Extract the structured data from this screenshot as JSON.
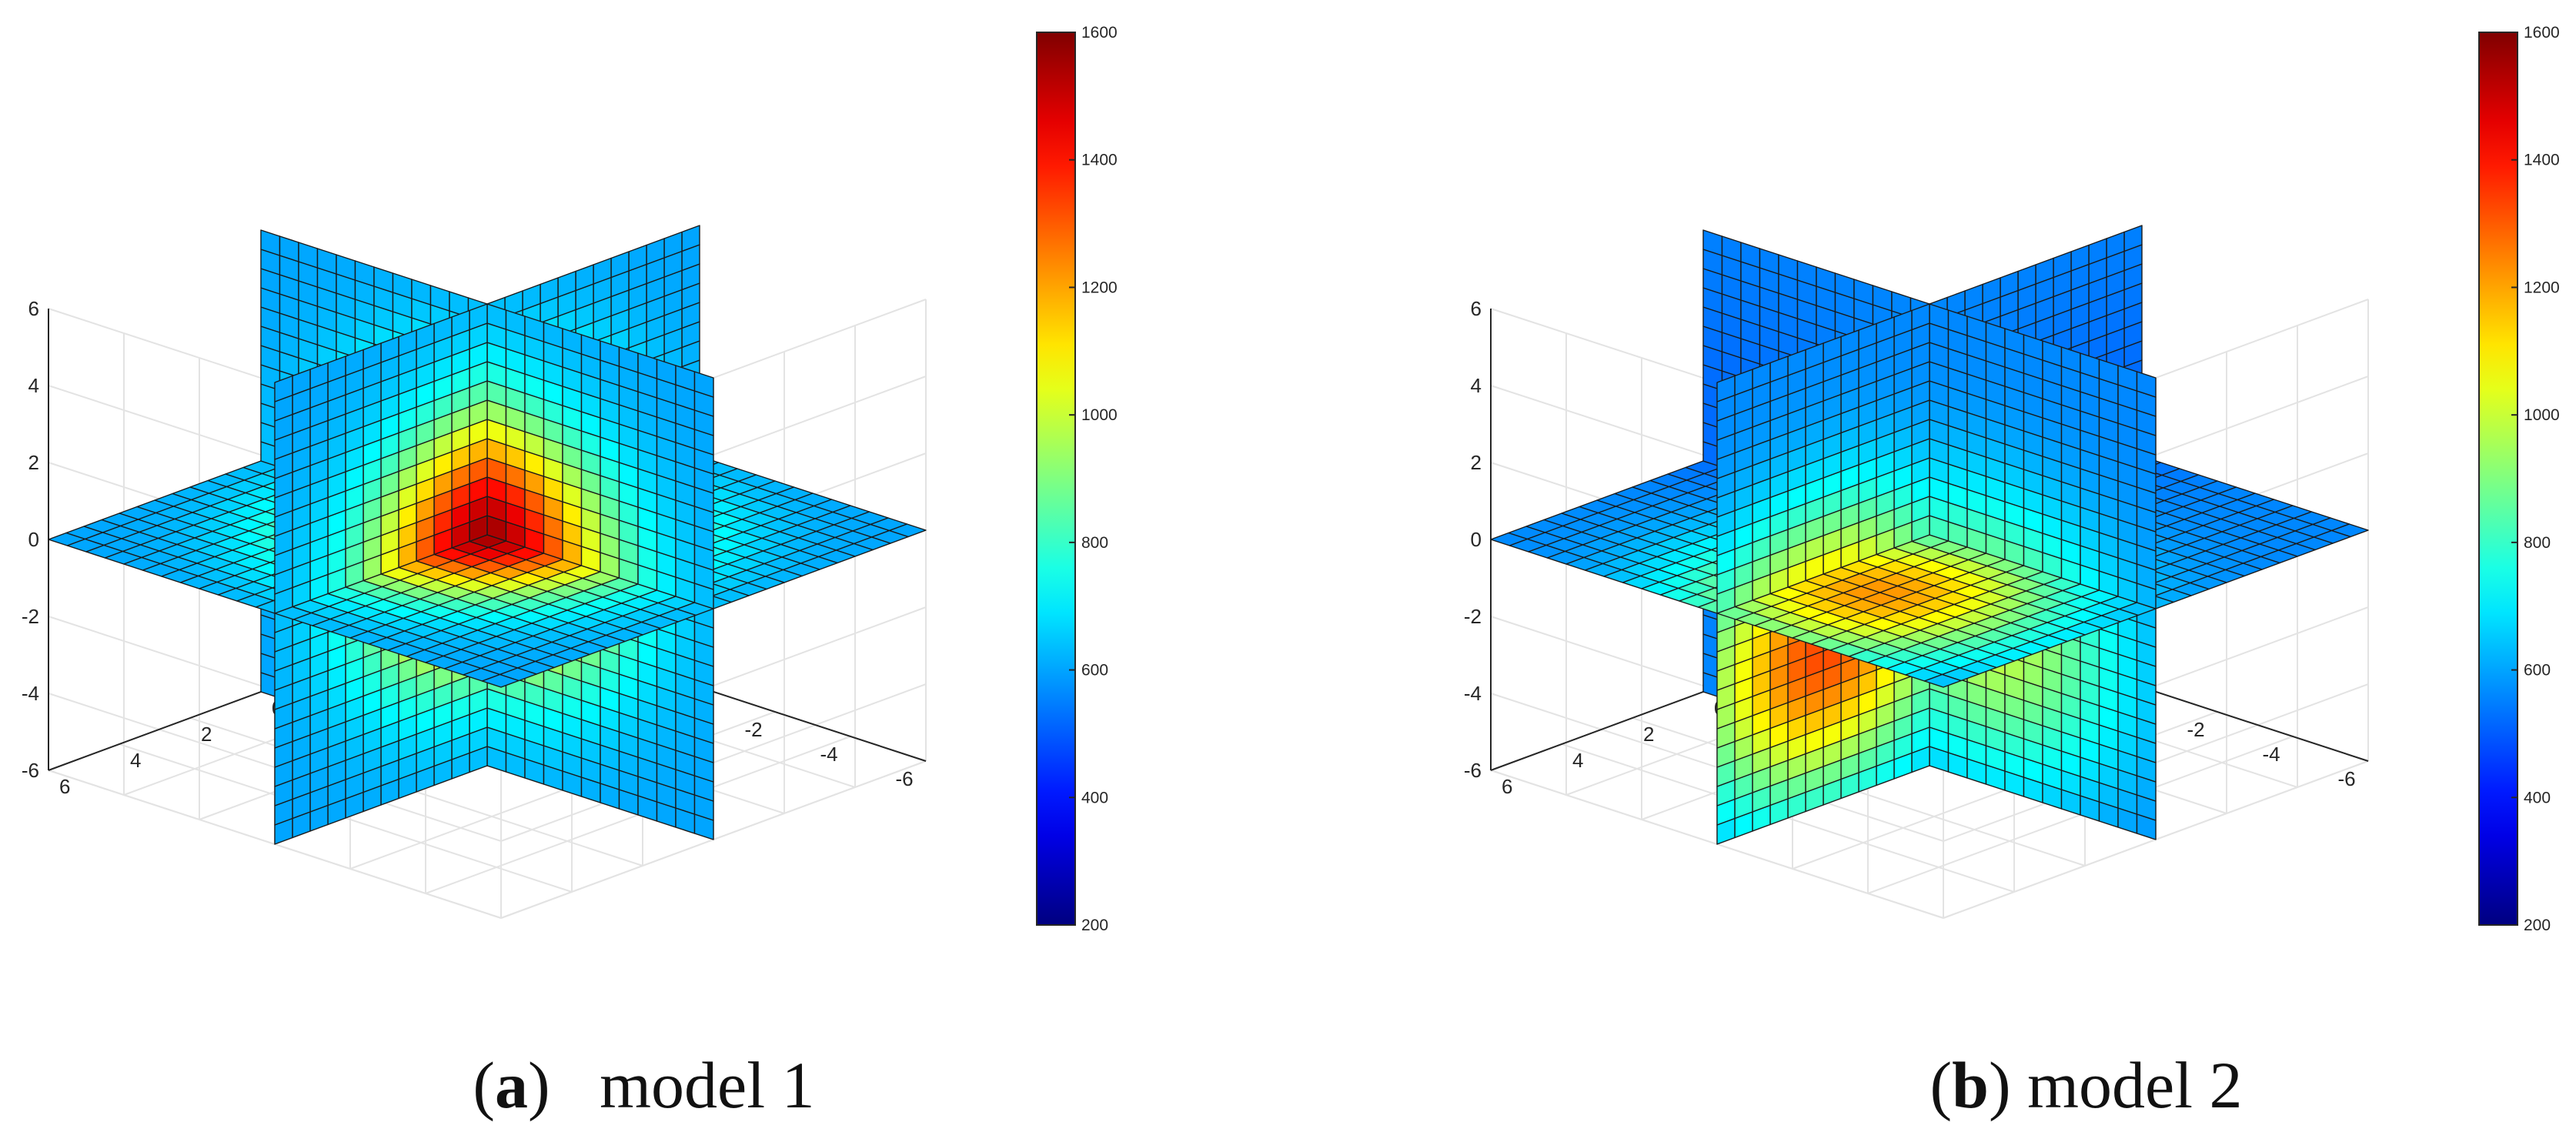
{
  "chart_data": [
    {
      "type": "heatmap",
      "subtype": "3d-orthogonal-slices",
      "caption": {
        "open": "(",
        "letter": "a",
        "close": ")",
        "text": "model 1"
      },
      "xlim": [
        -6,
        6
      ],
      "ylim": [
        -6,
        6
      ],
      "zlim": [
        -6,
        6
      ],
      "x_ticks": [
        -6,
        -4,
        -2,
        0,
        2,
        4,
        6
      ],
      "y_ticks": [
        -6,
        -4,
        -2,
        0,
        2,
        4,
        6
      ],
      "z_ticks": [
        -6,
        -4,
        -2,
        0,
        2,
        4,
        6
      ],
      "slices": {
        "x": 0,
        "y": 0,
        "z": 0
      },
      "grid": true,
      "colormap": "jet",
      "color_range": [
        200,
        1600
      ],
      "colorbar_ticks": [
        200,
        400,
        600,
        800,
        1000,
        1200,
        1400,
        1600
      ],
      "colorbar_position": "right",
      "field": {
        "background": 600,
        "peak": 1550,
        "peak_location": [
          0,
          0,
          0
        ],
        "decay_length": 3.2
      }
    },
    {
      "type": "heatmap",
      "subtype": "3d-orthogonal-slices",
      "caption": {
        "open": "(",
        "letter": "b",
        "close": ")",
        "text": "model 2"
      },
      "xlim": [
        -6,
        6
      ],
      "ylim": [
        -6,
        6
      ],
      "zlim": [
        -6,
        6
      ],
      "x_ticks": [
        -6,
        -4,
        -2,
        0,
        2,
        4,
        6
      ],
      "y_ticks": [
        -6,
        -4,
        -2,
        0,
        2,
        4,
        6
      ],
      "z_ticks": [
        -6,
        -4,
        -2,
        0,
        2,
        4,
        6
      ],
      "slices": {
        "x": 0,
        "y": 0,
        "z": 0
      },
      "grid": true,
      "colormap": "jet",
      "color_range": [
        200,
        1600
      ],
      "colorbar_ticks": [
        200,
        400,
        600,
        800,
        1000,
        1200,
        1400,
        1600
      ],
      "colorbar_position": "right",
      "field": {
        "background": 560,
        "peak": 1480,
        "peak_location": [
          -1.5,
          3,
          -2
        ],
        "decay_length": 3.5,
        "low_region": {
          "value": 360,
          "location": [
            5,
            -5,
            1
          ]
        }
      }
    }
  ]
}
